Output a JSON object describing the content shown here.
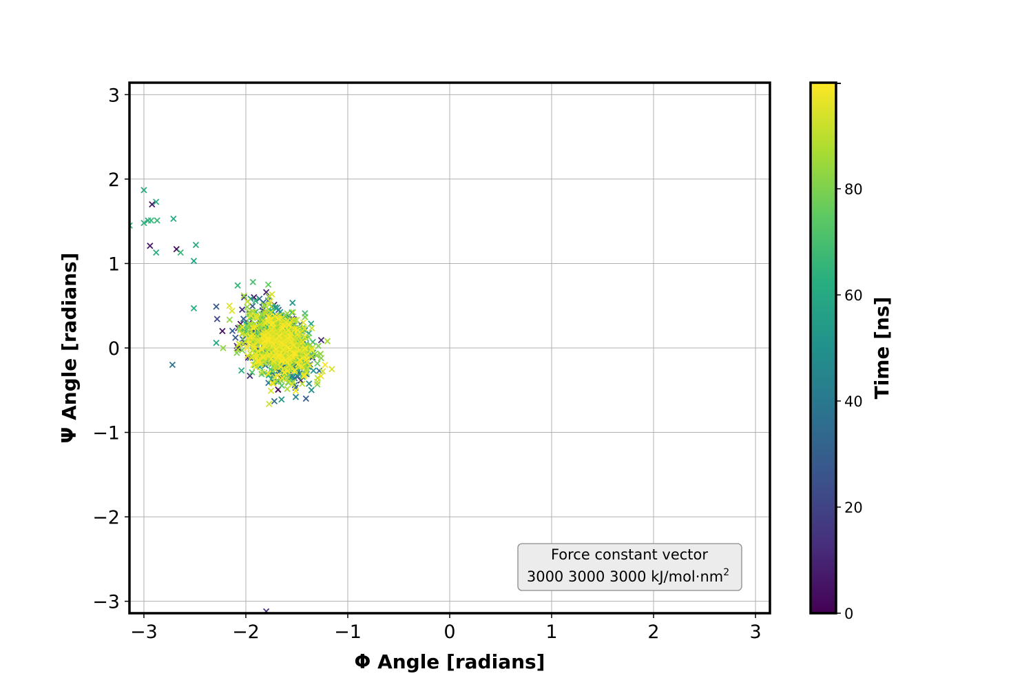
{
  "chart_data": {
    "type": "scatter",
    "marker": "x",
    "xlabel": "Φ Angle [radians]",
    "ylabel": "Ψ Angle [radians]",
    "xlim": [
      -3.1416,
      3.1416
    ],
    "ylim": [
      -3.1416,
      3.1416
    ],
    "x_ticks": [
      -3,
      -2,
      -1,
      0,
      1,
      2,
      3
    ],
    "y_ticks": [
      -3,
      -2,
      -1,
      0,
      1,
      2,
      3
    ],
    "grid": true,
    "colorbar": {
      "label": "Time [ns]",
      "colormap": "viridis",
      "range": [
        0,
        100
      ],
      "ticks": [
        0,
        20,
        40,
        60,
        80
      ]
    },
    "annotation": {
      "line1": "Force constant vector",
      "line2": "3000 3000 3000 kJ/mol·nm",
      "superscript": "2",
      "position": "lower-right"
    },
    "points": [
      {
        "x": -3.0,
        "y": 1.87,
        "t": 60
      },
      {
        "x": -2.88,
        "y": 1.73,
        "t": 62
      },
      {
        "x": -2.92,
        "y": 1.7,
        "t": 6
      },
      {
        "x": -3.14,
        "y": 1.45,
        "t": 66
      },
      {
        "x": -3.0,
        "y": 1.48,
        "t": 64
      },
      {
        "x": -2.96,
        "y": 1.51,
        "t": 62
      },
      {
        "x": -2.93,
        "y": 1.51,
        "t": 66
      },
      {
        "x": -2.87,
        "y": 1.51,
        "t": 66
      },
      {
        "x": -2.71,
        "y": 1.53,
        "t": 60
      },
      {
        "x": -2.94,
        "y": 1.21,
        "t": 6
      },
      {
        "x": -2.88,
        "y": 1.13,
        "t": 62
      },
      {
        "x": -2.68,
        "y": 1.17,
        "t": 4
      },
      {
        "x": -2.64,
        "y": 1.13,
        "t": 66
      },
      {
        "x": -2.49,
        "y": 1.22,
        "t": 62
      },
      {
        "x": -2.51,
        "y": 1.03,
        "t": 58
      },
      {
        "x": -2.51,
        "y": 0.47,
        "t": 62
      },
      {
        "x": -2.29,
        "y": 0.49,
        "t": 28
      },
      {
        "x": -2.29,
        "y": 0.06,
        "t": 58
      },
      {
        "x": -2.72,
        "y": -0.2,
        "t": 38
      },
      {
        "x": -1.8,
        "y": -3.12,
        "t": 14
      },
      {
        "x": -1.72,
        "y": -0.63,
        "t": 36
      },
      {
        "x": -1.65,
        "y": -0.61,
        "t": 54
      },
      {
        "x": -1.41,
        "y": -0.6,
        "t": 28
      },
      {
        "x": -1.51,
        "y": -0.58,
        "t": 44
      },
      {
        "x": -1.2,
        "y": 0.08,
        "t": 86
      },
      {
        "x": -1.93,
        "y": 0.78,
        "t": 70
      },
      {
        "x": -1.78,
        "y": 0.75,
        "t": 76
      },
      {
        "x": -2.08,
        "y": 0.74,
        "t": 66
      },
      {
        "x": -1.42,
        "y": 0.41,
        "t": 70
      },
      {
        "x": -2.23,
        "y": 0.2,
        "t": 4
      },
      {
        "x": -1.28,
        "y": -0.27,
        "t": 36
      },
      {
        "x": -1.3,
        "y": -0.4,
        "t": 92
      },
      {
        "x": -1.96,
        "y": -0.33,
        "t": 14
      },
      {
        "x": -1.73,
        "y": -0.4,
        "t": 8
      },
      {
        "x": -1.8,
        "y": 0.66,
        "t": 8
      },
      {
        "x": -1.92,
        "y": 0.6,
        "t": 4
      }
    ],
    "clusters": [
      {
        "cx": -1.68,
        "cy": 0.05,
        "sx": 0.16,
        "sy": 0.2,
        "rho": -0.35,
        "n": 1300
      }
    ]
  }
}
